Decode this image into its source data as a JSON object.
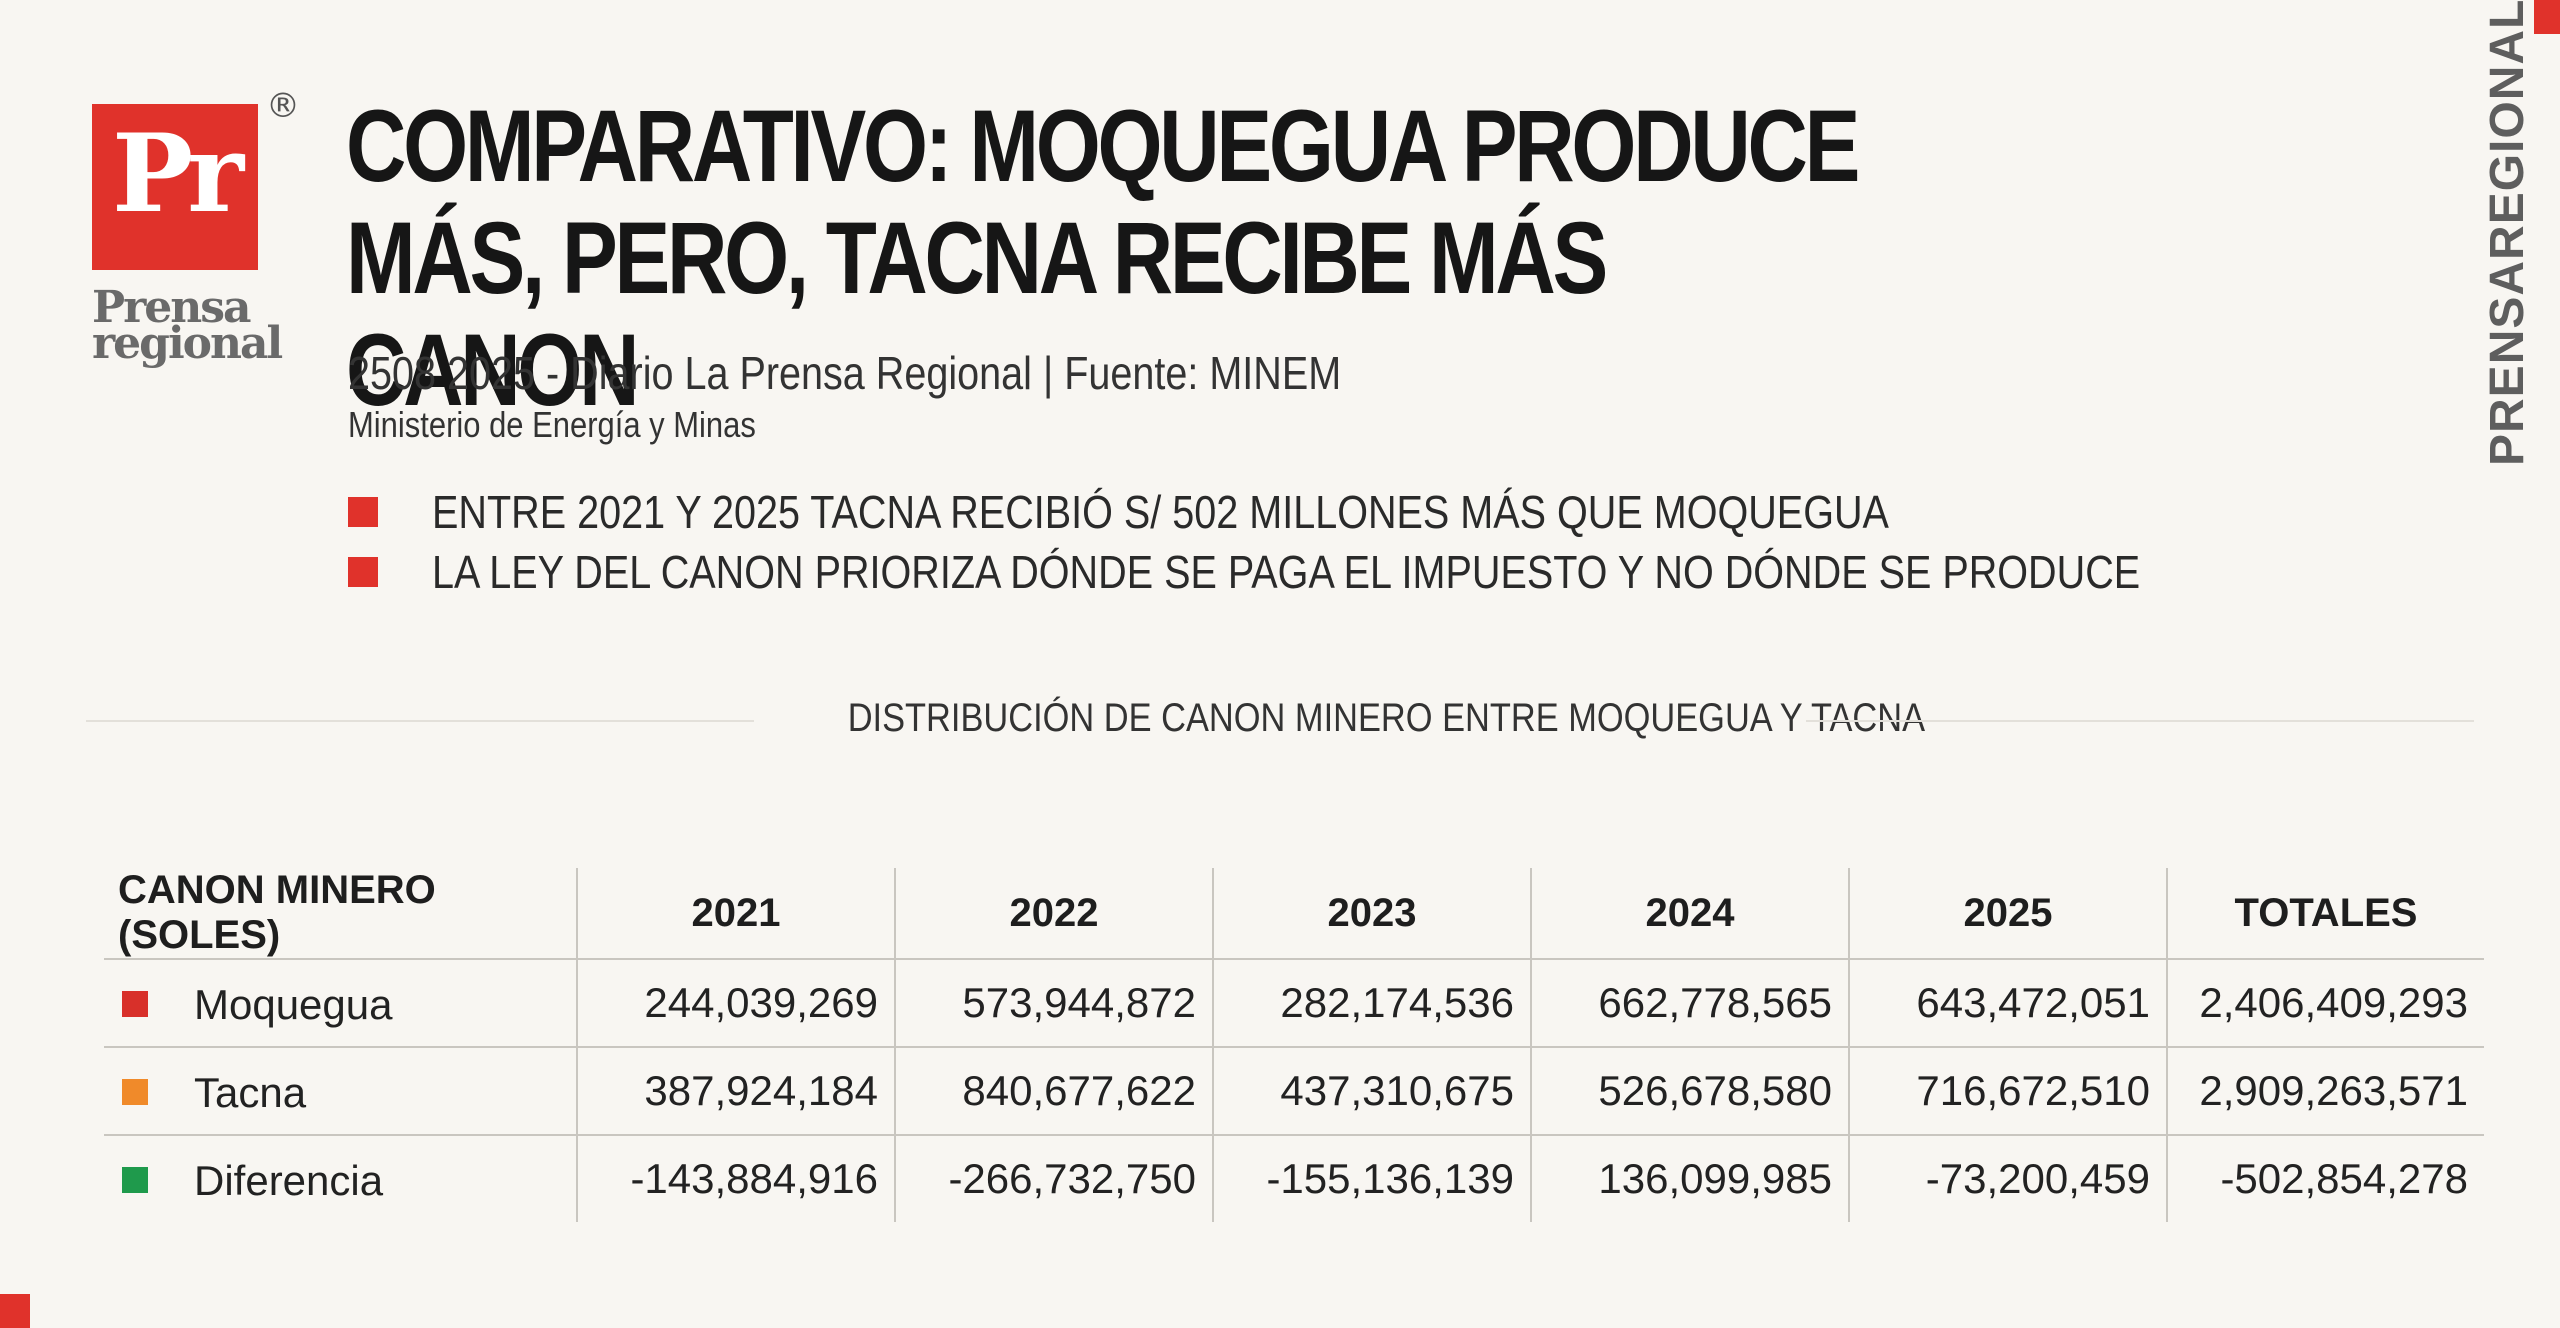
{
  "brand": {
    "logo_text": "Pr",
    "registered_mark": "®",
    "name_line1": "Prensa",
    "name_line2": "regional",
    "vertical_url": "PRENSAREGIONAL.PE",
    "accent_color": "#e0322b"
  },
  "header": {
    "title": "COMPARATIVO: MOQUEGUA PRODUCE MÁS, PERO, TACNA RECIBE MÁS CANON",
    "subtitle": "2508 2025 - Diario La Prensa Regional | Fuente: MINEM",
    "subtitle2": "Ministerio de Energía y Minas"
  },
  "bullets": [
    "ENTRE 2021 Y 2025 TACNA RECIBIÓ S/ 502 MILLONES MÁS QUE MOQUEGUA",
    "LA LEY DEL CANON PRIORIZA DÓNDE SE PAGA EL IMPUESTO Y NO DÓNDE SE PRODUCE"
  ],
  "chart_data": {
    "type": "table",
    "title": "DISTRIBUCIÓN DE CANON MINERO ENTRE MOQUEGUA Y TACNA",
    "columns": [
      "CANON MINERO (SOLES)",
      "2021",
      "2022",
      "2023",
      "2024",
      "2025",
      "TOTALES"
    ],
    "rows": [
      {
        "label": "Moquegua",
        "color": "#d8302a",
        "values": [
          "244,039,269",
          "573,944,872",
          "282,174,536",
          "662,778,565",
          "643,472,051",
          "2,406,409,293"
        ]
      },
      {
        "label": "Tacna",
        "color": "#f08a2a",
        "values": [
          "387,924,184",
          "840,677,622",
          "437,310,675",
          "526,678,580",
          "716,672,510",
          "2,909,263,571"
        ]
      },
      {
        "label": "Diferencia",
        "color": "#1f9a4c",
        "values": [
          "-143,884,916",
          "-266,732,750",
          "-155,136,139",
          "136,099,985",
          "-73,200,459",
          "-502,854,278"
        ]
      }
    ]
  }
}
